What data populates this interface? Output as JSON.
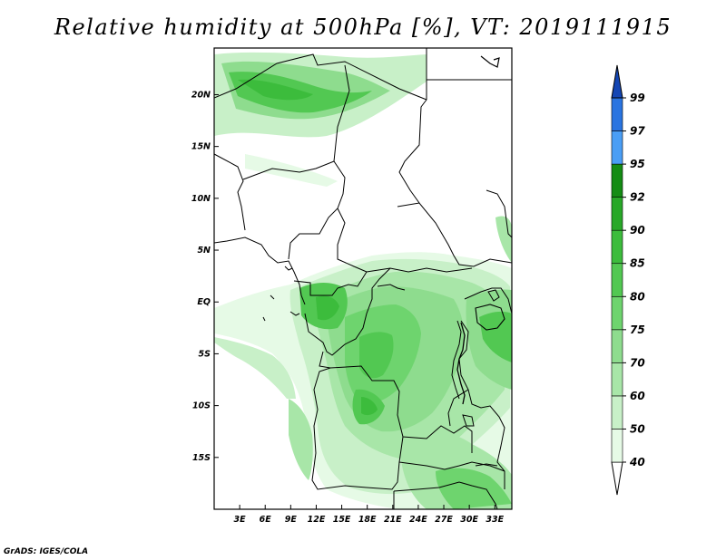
{
  "title": "Relative humidity at 500hPa [%], VT: 2019111915",
  "credit": "GrADS: IGES/COLA",
  "map": {
    "lon_range": [
      0,
      35
    ],
    "lat_range": [
      -20,
      24.5
    ],
    "lon_ticks": [
      "3E",
      "6E",
      "9E",
      "12E",
      "15E",
      "18E",
      "21E",
      "24E",
      "27E",
      "30E",
      "33E"
    ],
    "lat_ticks": [
      "20N",
      "15N",
      "10N",
      "5N",
      "EQ",
      "5S",
      "10S",
      "15S"
    ],
    "field": "relative humidity",
    "level": "500hPa",
    "valid_time": "2019111915"
  },
  "colorbar": {
    "labels": [
      "40",
      "50",
      "60",
      "70",
      "75",
      "80",
      "85",
      "90",
      "92",
      "95",
      "97",
      "99"
    ],
    "colors": [
      "#ffffff",
      "#e6fae6",
      "#c8f0c8",
      "#a8e6a8",
      "#8edc8e",
      "#6ed46e",
      "#52c852",
      "#3cbc3c",
      "#28a828",
      "#148c14",
      "#4a9ef5",
      "#2a74e0",
      "#1e5ac8",
      "#1446b4"
    ]
  }
}
